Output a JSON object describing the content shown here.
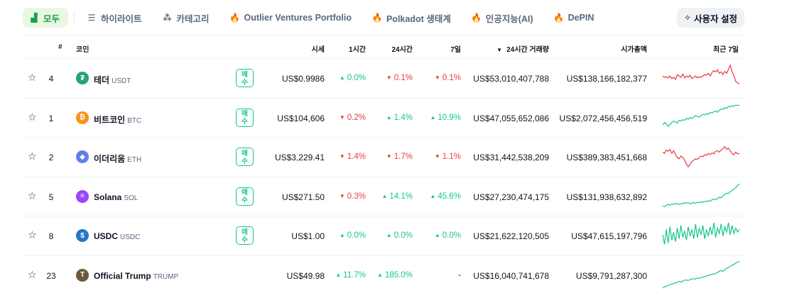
{
  "filters": [
    {
      "label": "모두",
      "icon": "bars-icon",
      "glyph": "▟"
    },
    {
      "label": "하이라이트",
      "icon": "list-icon",
      "glyph": "☰"
    },
    {
      "label": "카테고리",
      "icon": "shapes-icon",
      "glyph": "⁂"
    },
    {
      "label": "Outlier Ventures Portfolio",
      "icon": "fire-icon",
      "glyph": "🔥"
    },
    {
      "label": "Polkadot 생태계",
      "icon": "fire-icon",
      "glyph": "🔥"
    },
    {
      "label": "인공지능(AI)",
      "icon": "fire-icon",
      "glyph": "🔥"
    },
    {
      "label": "DePIN",
      "icon": "fire-icon",
      "glyph": "🔥"
    }
  ],
  "settings_label": "사용자 설정",
  "settings_glyph": "✧",
  "headers": {
    "rank": "#",
    "coin": "코인",
    "price": "시세",
    "h1": "1시간",
    "h24": "24시간",
    "d7": "7일",
    "volume": "24시간 거래량",
    "sort_glyph": "▼",
    "mcap": "시가총액",
    "chart": "최근 7일"
  },
  "buy_label": [
    "매",
    "수"
  ],
  "star_glyph": "☆",
  "colors": {
    "up": "#16c784",
    "down": "#ea3943",
    "accent": "#16a34a"
  },
  "rows": [
    {
      "rank": "4",
      "name": "테더",
      "symbol": "USDT",
      "icon_color": "#26a17b",
      "icon_glyph": "₮",
      "buy": true,
      "price": "US$0.9986",
      "h1": {
        "dir": "up",
        "text": "0.0%"
      },
      "h24": {
        "dir": "down",
        "text": "0.1%"
      },
      "d7": {
        "dir": "down",
        "text": "0.1%"
      },
      "volume": "US$53,010,407,788",
      "mcap": "US$138,166,182,377",
      "spark_trend": "down",
      "spark": [
        0.55,
        0.5,
        0.52,
        0.48,
        0.55,
        0.45,
        0.5,
        0.42,
        0.6,
        0.55,
        0.5,
        0.62,
        0.48,
        0.55,
        0.5,
        0.58,
        0.45,
        0.5,
        0.55,
        0.48,
        0.52,
        0.5,
        0.55,
        0.6,
        0.58,
        0.65,
        0.55,
        0.68,
        0.75,
        0.7,
        0.78,
        0.65,
        0.7,
        0.6,
        0.72,
        0.65,
        0.8,
        0.95,
        0.7,
        0.55,
        0.35,
        0.3,
        0.25
      ]
    },
    {
      "rank": "1",
      "name": "비트코인",
      "symbol": "BTC",
      "icon_color": "#f7931a",
      "icon_glyph": "₿",
      "buy": true,
      "price": "US$104,606",
      "h1": {
        "dir": "down",
        "text": "0.2%"
      },
      "h24": {
        "dir": "up",
        "text": "1.4%"
      },
      "d7": {
        "dir": "up",
        "text": "10.9%"
      },
      "volume": "US$47,055,652,086",
      "mcap": "US$2,072,456,456,519",
      "spark_trend": "up",
      "spark": [
        0.2,
        0.3,
        0.25,
        0.15,
        0.22,
        0.3,
        0.35,
        0.32,
        0.28,
        0.38,
        0.35,
        0.4,
        0.38,
        0.45,
        0.42,
        0.48,
        0.45,
        0.5,
        0.55,
        0.52,
        0.5,
        0.55,
        0.6,
        0.58,
        0.62,
        0.6,
        0.68,
        0.65,
        0.7,
        0.72,
        0.68,
        0.75,
        0.8,
        0.78,
        0.85,
        0.82,
        0.9,
        0.88,
        0.92,
        0.9,
        0.95,
        0.92,
        0.95
      ]
    },
    {
      "rank": "2",
      "name": "이더리움",
      "symbol": "ETH",
      "icon_color": "#627eea",
      "icon_glyph": "◆",
      "buy": true,
      "price": "US$3,229.41",
      "h1": {
        "dir": "down",
        "text": "1.4%"
      },
      "h24": {
        "dir": "down",
        "text": "1.7%"
      },
      "d7": {
        "dir": "down",
        "text": "1.1%"
      },
      "volume": "US$31,442,538,209",
      "mcap": "US$389,383,451,668",
      "spark_trend": "down",
      "spark": [
        0.65,
        0.6,
        0.72,
        0.68,
        0.75,
        0.6,
        0.7,
        0.55,
        0.45,
        0.4,
        0.5,
        0.45,
        0.35,
        0.2,
        0.1,
        0.2,
        0.3,
        0.35,
        0.4,
        0.38,
        0.45,
        0.5,
        0.48,
        0.55,
        0.52,
        0.6,
        0.55,
        0.62,
        0.58,
        0.68,
        0.7,
        0.65,
        0.72,
        0.78,
        0.85,
        0.75,
        0.8,
        0.7,
        0.6,
        0.55,
        0.65,
        0.58,
        0.6
      ]
    },
    {
      "rank": "5",
      "name": "Solana",
      "symbol": "SOL",
      "icon_color": "#9945ff",
      "icon_glyph": "≡",
      "buy": true,
      "price": "US$271.50",
      "h1": {
        "dir": "down",
        "text": "0.3%"
      },
      "h24": {
        "dir": "up",
        "text": "14.1%"
      },
      "d7": {
        "dir": "up",
        "text": "45.6%"
      },
      "volume": "US$27,230,474,175",
      "mcap": "US$131,938,632,892",
      "spark_trend": "up",
      "spark": [
        0.12,
        0.1,
        0.15,
        0.18,
        0.15,
        0.2,
        0.18,
        0.22,
        0.2,
        0.18,
        0.22,
        0.2,
        0.25,
        0.22,
        0.24,
        0.2,
        0.22,
        0.25,
        0.22,
        0.26,
        0.25,
        0.28,
        0.26,
        0.3,
        0.28,
        0.32,
        0.3,
        0.35,
        0.38,
        0.35,
        0.4,
        0.45,
        0.42,
        0.5,
        0.55,
        0.6,
        0.58,
        0.65,
        0.7,
        0.75,
        0.8,
        0.88,
        0.95
      ]
    },
    {
      "rank": "8",
      "name": "USDC",
      "symbol": "USDC",
      "icon_color": "#2775ca",
      "icon_glyph": "$",
      "buy": true,
      "price": "US$1.00",
      "h1": {
        "dir": "up",
        "text": "0.0%"
      },
      "h24": {
        "dir": "up",
        "text": "0.0%"
      },
      "d7": {
        "dir": "up",
        "text": "0.0%"
      },
      "volume": "US$21,622,120,505",
      "mcap": "US$47,615,197,796",
      "spark_trend": "up",
      "spark": [
        0.5,
        0.15,
        0.7,
        0.2,
        0.8,
        0.3,
        0.6,
        0.25,
        0.75,
        0.35,
        0.85,
        0.4,
        0.65,
        0.3,
        0.8,
        0.45,
        0.7,
        0.35,
        0.9,
        0.4,
        0.75,
        0.5,
        0.85,
        0.35,
        0.7,
        0.45,
        0.8,
        0.5,
        0.95,
        0.4,
        0.75,
        0.55,
        0.9,
        0.45,
        0.8,
        0.6,
        0.95,
        0.5,
        0.85,
        0.55,
        0.75,
        0.6,
        0.7
      ]
    },
    {
      "rank": "23",
      "name": "Official Trump",
      "symbol": "TRUMP",
      "icon_color": "#6b5a3e",
      "icon_glyph": "T",
      "buy": false,
      "price": "US$49.98",
      "h1": {
        "dir": "up",
        "text": "11.7%"
      },
      "h24": {
        "dir": "up",
        "text": "185.0%"
      },
      "d7": {
        "dir": "none",
        "text": "-"
      },
      "volume": "US$16,040,741,678",
      "mcap": "US$9,791,287,300",
      "spark_trend": "up",
      "spark": [
        0.0,
        0.05,
        0.08,
        0.12,
        0.15,
        0.18,
        0.2,
        0.25,
        0.22,
        0.28,
        0.3,
        0.28,
        0.32,
        0.35,
        0.33,
        0.38,
        0.36,
        0.4,
        0.42,
        0.45,
        0.48,
        0.5,
        0.52,
        0.55,
        0.6,
        0.65,
        0.62,
        0.7,
        0.75,
        0.8,
        0.85,
        0.9,
        0.95,
        1.0
      ]
    }
  ]
}
